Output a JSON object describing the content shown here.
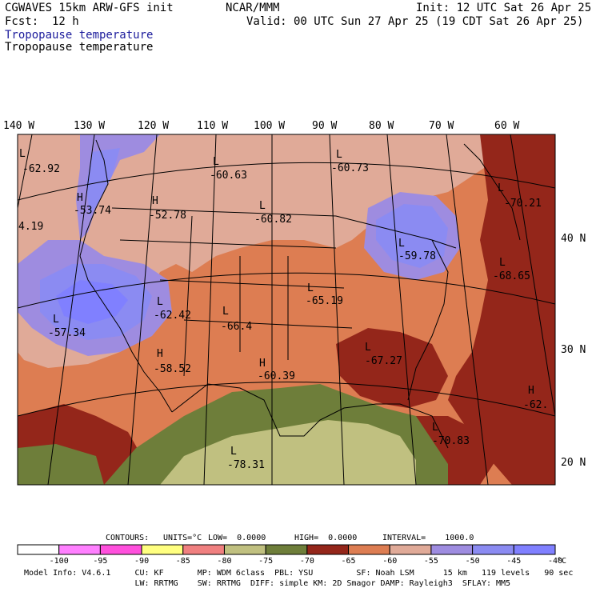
{
  "header": {
    "model": "CGWAVES 15km ARW-GFS init",
    "org": "NCAR/MMM",
    "init": "Init: 12 UTC Sat 26 Apr 25",
    "fcst": "Fcst:  12 h",
    "valid": "Valid: 00 UTC Sun 27 Apr 25 (19 CDT Sat 26 Apr 25)",
    "field_blue": "Tropopause temperature",
    "field_black": "Tropopause temperature"
  },
  "lon_labels": [
    "140 W",
    "130 W",
    "120 W",
    "110 W",
    "100 W",
    "90 W",
    "80 W",
    "70 W",
    "60 W"
  ],
  "lat_labels": [
    "40 N",
    "30 N",
    "20 N"
  ],
  "pressure_centers": [
    {
      "letter": "L",
      "value": "-62.92"
    },
    {
      "letter": "H",
      "value": "-53.74"
    },
    {
      "letter": "",
      "value": "4.19"
    },
    {
      "letter": "H",
      "value": "-52.78"
    },
    {
      "letter": "L",
      "value": "-60.63"
    },
    {
      "letter": "L",
      "value": "-60.82"
    },
    {
      "letter": "L",
      "value": "-60.73"
    },
    {
      "letter": "L",
      "value": "-70.21"
    },
    {
      "letter": "L",
      "value": "-59.78"
    },
    {
      "letter": "L",
      "value": "-68.65"
    },
    {
      "letter": "L",
      "value": "-65.19"
    },
    {
      "letter": "L",
      "value": "-57.34"
    },
    {
      "letter": "L",
      "value": "-62.42"
    },
    {
      "letter": "L",
      "value": "-66.4"
    },
    {
      "letter": "H",
      "value": "-58.52"
    },
    {
      "letter": "H",
      "value": "-60.39"
    },
    {
      "letter": "L",
      "value": "-67.27"
    },
    {
      "letter": "H",
      "value": "-62."
    },
    {
      "letter": "L",
      "value": "-70.83"
    },
    {
      "letter": "L",
      "value": "-78.31"
    }
  ],
  "contours": {
    "label": "CONTOURS:",
    "units": "UNITS=°C",
    "low": "LOW=  0.0000",
    "high": "HIGH=  0.0000",
    "interval": "INTERVAL=    1000.0"
  },
  "colorbar": {
    "colors": [
      "#ffffff",
      "#ff80ff",
      "#ff50dd",
      "#ffff80",
      "#f08080",
      "#c0c080",
      "#6e7e3a",
      "#94261a",
      "#dd7d52",
      "#e0aa98",
      "#9e8ce0",
      "#8b8bf2",
      "#8080ff"
    ],
    "labels": [
      "-100",
      "-95",
      "-90",
      "-85",
      "-80",
      "-75",
      "-70",
      "-65",
      "-60",
      "-55",
      "-50",
      "-45",
      "-40"
    ],
    "unit": "°C"
  },
  "model_info": {
    "line1": "Model Info: V4.6.1     CU: KF       MP: WDM 6class  PBL: YSU         SF: Noah LSM      15 km   119 levels   90 sec",
    "line2": "                       LW: RRTMG    SW: RRTMG  DIFF: simple KM: 2D Smagor DAMP: Rayleigh3  SFLAY: MM5"
  }
}
